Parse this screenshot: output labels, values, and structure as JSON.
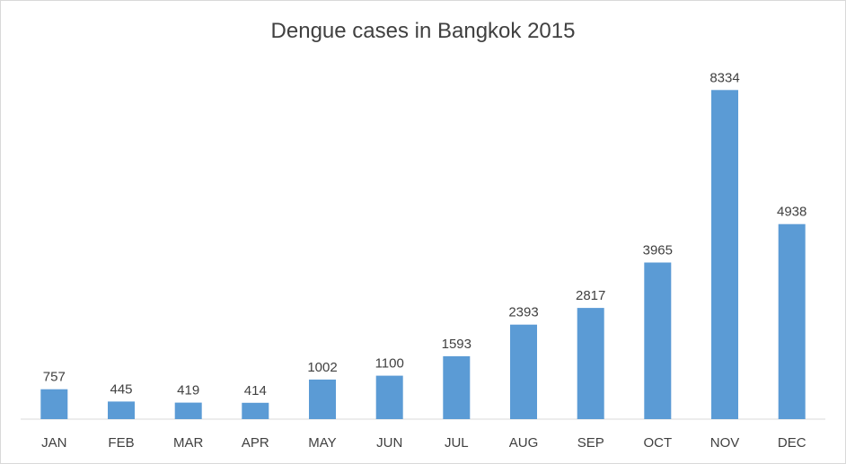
{
  "chart_data": {
    "type": "bar",
    "title": "Dengue cases in Bangkok 2015",
    "xlabel": "",
    "ylabel": "",
    "categories": [
      "JAN",
      "FEB",
      "MAR",
      "APR",
      "MAY",
      "JUN",
      "JUL",
      "AUG",
      "SEP",
      "OCT",
      "NOV",
      "DEC"
    ],
    "values": [
      757,
      445,
      419,
      414,
      1002,
      1100,
      1593,
      2393,
      2817,
      3965,
      8334,
      4938
    ],
    "ylim": [
      0,
      9000
    ],
    "grid": false,
    "legend": "none",
    "bar_color": "#5b9bd5",
    "axis_color": "#d9d9d9",
    "text_color": "#404040"
  }
}
